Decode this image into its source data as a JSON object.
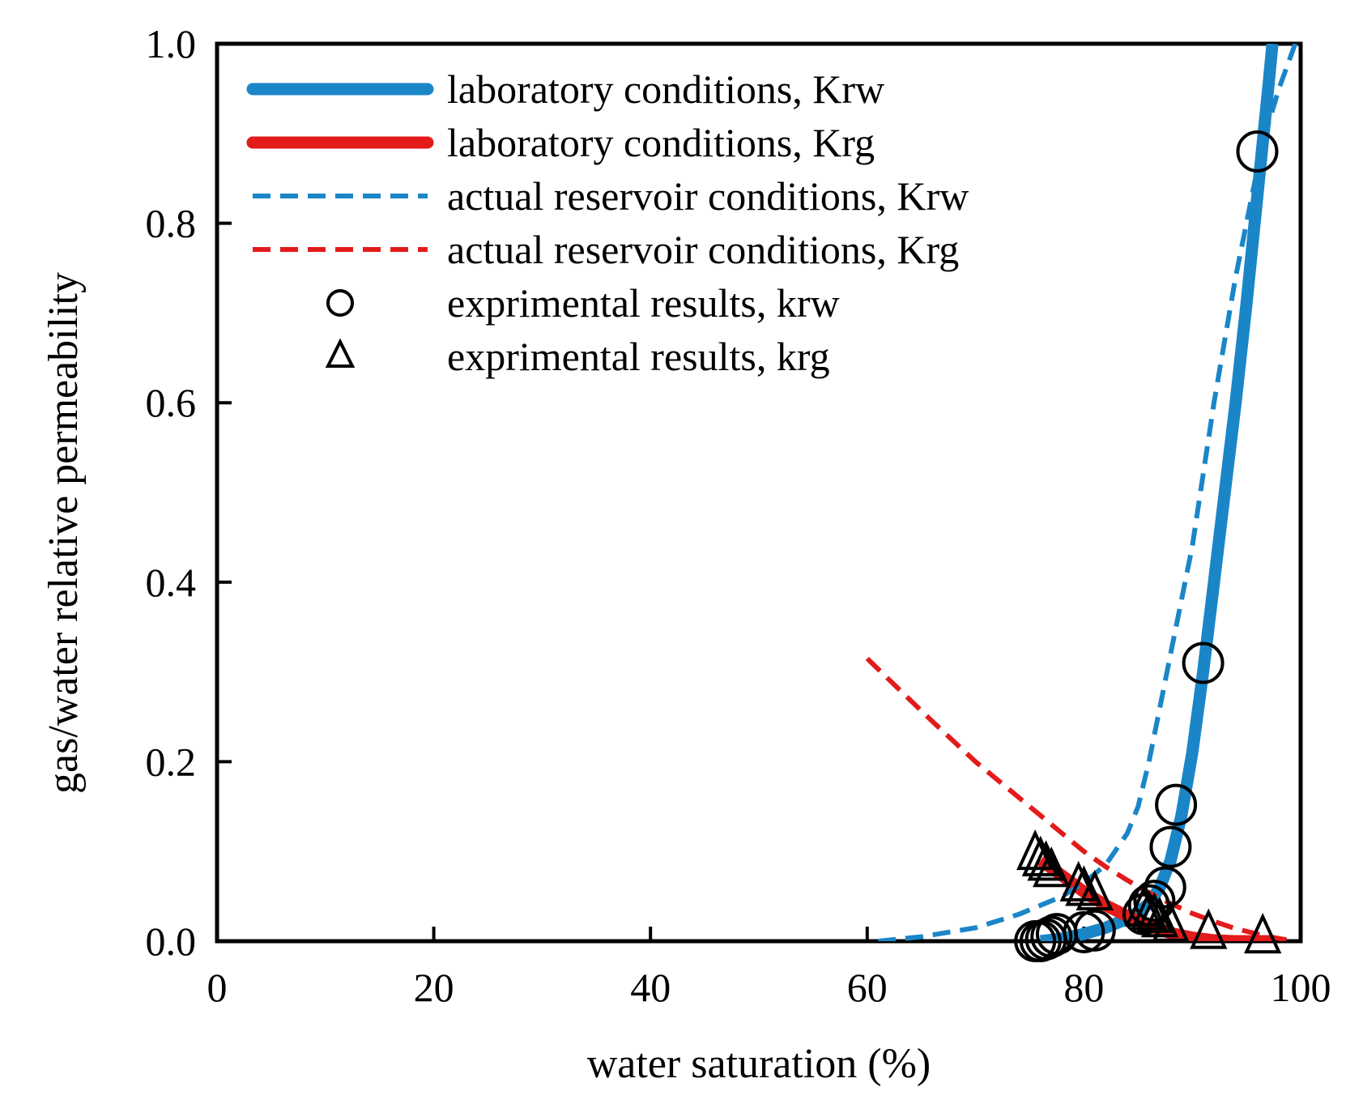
{
  "chart_data": {
    "type": "line",
    "xlabel": "water saturation (%)",
    "ylabel": "gas/water relative permeability",
    "xlim": [
      0,
      100
    ],
    "ylim": [
      0,
      1.0
    ],
    "x_ticks": [
      "0",
      "20",
      "40",
      "60",
      "80",
      "100"
    ],
    "y_ticks": [
      "0.0",
      "0.2",
      "0.4",
      "0.6",
      "0.8",
      "1.0"
    ],
    "legend_position": "top-left",
    "grid": false,
    "series": [
      {
        "name": "laboratory conditions, Krw",
        "style": "solid-thick",
        "color": "#1a86c8",
        "x": [
          76,
          78,
          80,
          82,
          84,
          85,
          86,
          87,
          88,
          89,
          90,
          91,
          92,
          93,
          94,
          95,
          96,
          97,
          97.4
        ],
        "y": [
          0.0,
          0.003,
          0.008,
          0.015,
          0.025,
          0.032,
          0.042,
          0.06,
          0.09,
          0.14,
          0.21,
          0.3,
          0.4,
          0.5,
          0.6,
          0.71,
          0.83,
          0.95,
          1.0
        ]
      },
      {
        "name": "laboratory conditions, Krg",
        "style": "solid-thick",
        "color": "#e31b1b",
        "x": [
          76,
          78,
          80,
          82,
          84,
          86,
          88,
          90,
          92,
          94,
          96,
          97.5
        ],
        "y": [
          0.09,
          0.073,
          0.055,
          0.04,
          0.028,
          0.017,
          0.009,
          0.004,
          0.001,
          0.0,
          0.0,
          0.0
        ]
      },
      {
        "name": "actual reservoir conditions, Krw",
        "style": "dashed",
        "color": "#1a86c8",
        "x": [
          61,
          65,
          70,
          74,
          78,
          80,
          82,
          84,
          85,
          86,
          87,
          88,
          89,
          90,
          91,
          92,
          93,
          94,
          95,
          96,
          97,
          98,
          99.5
        ],
        "y": [
          0.0,
          0.005,
          0.015,
          0.03,
          0.05,
          0.065,
          0.085,
          0.12,
          0.15,
          0.2,
          0.26,
          0.32,
          0.38,
          0.44,
          0.52,
          0.6,
          0.67,
          0.74,
          0.8,
          0.86,
          0.91,
          0.95,
          1.0
        ]
      },
      {
        "name": "actual reservoir conditions, Krg",
        "style": "dashed",
        "color": "#e31b1b",
        "x": [
          60,
          63,
          66,
          70,
          74,
          78,
          80,
          82,
          84,
          86,
          88,
          90,
          92,
          94,
          96,
          98,
          99.5
        ],
        "y": [
          0.315,
          0.28,
          0.245,
          0.2,
          0.16,
          0.12,
          0.1,
          0.083,
          0.068,
          0.054,
          0.042,
          0.031,
          0.022,
          0.014,
          0.008,
          0.003,
          0.0
        ]
      },
      {
        "name": "exprimental results, krw",
        "style": "marker-circle",
        "color": "#000000",
        "x": [
          75.5,
          76,
          76.5,
          77,
          77.5,
          80,
          81,
          85.5,
          86,
          86.5,
          87.5,
          88,
          88.5,
          91,
          96
        ],
        "y": [
          0.0,
          0.0,
          0.002,
          0.005,
          0.008,
          0.01,
          0.012,
          0.03,
          0.04,
          0.045,
          0.06,
          0.105,
          0.152,
          0.31,
          0.88
        ]
      },
      {
        "name": "exprimental results, krg",
        "style": "marker-triangle",
        "color": "#000000",
        "x": [
          75.5,
          76,
          76.5,
          77,
          79.5,
          80,
          81,
          85.5,
          86,
          86.5,
          87,
          88,
          91.5,
          96.5
        ],
        "y": [
          0.095,
          0.088,
          0.083,
          0.076,
          0.06,
          0.055,
          0.05,
          0.032,
          0.028,
          0.025,
          0.02,
          0.015,
          0.007,
          0.002
        ]
      }
    ]
  }
}
